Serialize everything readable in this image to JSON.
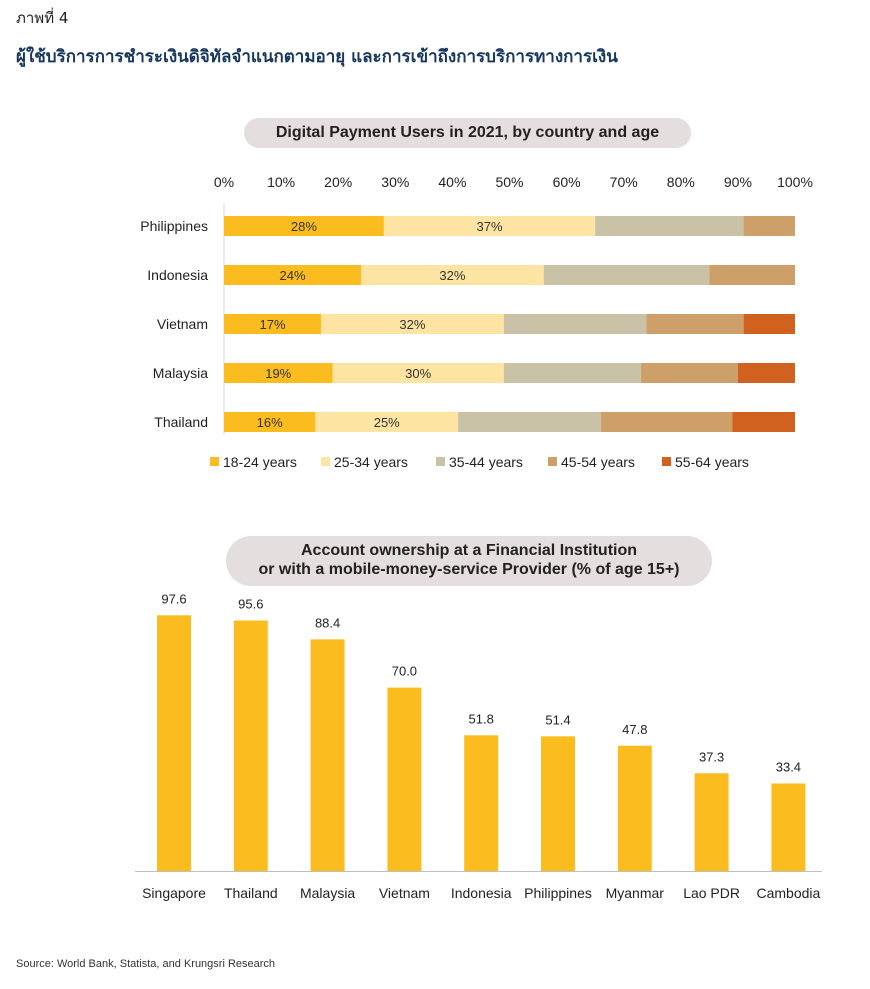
{
  "figure_label": "ภาพที่ 4",
  "figure_title": "ผู้ใช้บริการการชำระเงินดิจิทัลจำแนกตามอายุ และการเข้าถึงการบริการทางการเงิน",
  "source": "Source:  World Bank, Statista, and Krungsri Research",
  "chart_data": [
    {
      "type": "bar",
      "orientation": "horizontal",
      "stacked": true,
      "title": "Digital Payment Users in 2021, by country and age",
      "xlim": [
        0,
        100
      ],
      "x_ticks": [
        "0%",
        "10%",
        "20%",
        "30%",
        "40%",
        "50%",
        "60%",
        "70%",
        "80%",
        "90%",
        "100%"
      ],
      "axis_position": "top",
      "legend_placement": "bottom",
      "categories": [
        "Philippines",
        "Indonesia",
        "Vietnam",
        "Malaysia",
        "Thailand"
      ],
      "series": [
        {
          "name": "18-24 years",
          "color": "#fbbc1f",
          "values": [
            28,
            24,
            17,
            19,
            16
          ],
          "labels": [
            "28%",
            "24%",
            "17%",
            "19%",
            "16%"
          ]
        },
        {
          "name": "25-34 years",
          "color": "#fde4a3",
          "values": [
            37,
            32,
            32,
            30,
            25
          ],
          "labels": [
            "37%",
            "32%",
            "32%",
            "30%",
            "25%"
          ]
        },
        {
          "name": "35-44 years",
          "color": "#c9c2a7",
          "values": [
            26,
            29,
            25,
            24,
            25
          ]
        },
        {
          "name": "45-54 years",
          "color": "#cda06a",
          "values": [
            9,
            15,
            17,
            17,
            23
          ]
        },
        {
          "name": "55-64 years",
          "color": "#d0611e",
          "values": [
            0,
            0,
            9,
            10,
            11
          ]
        }
      ]
    },
    {
      "type": "bar",
      "title_lines": [
        "Account ownership at a Financial Institution",
        "or with a mobile-money-service Provider (% of age 15+)"
      ],
      "categories": [
        "Singapore",
        "Thailand",
        "Malaysia",
        "Vietnam",
        "Indonesia",
        "Philippines",
        "Myanmar",
        "Lao PDR",
        "Cambodia"
      ],
      "values": [
        97.6,
        95.6,
        88.4,
        70.0,
        51.8,
        51.4,
        47.8,
        37.3,
        33.4
      ],
      "value_labels": [
        "97.6",
        "95.6",
        "88.4",
        "70.0",
        "51.8",
        "51.4",
        "47.8",
        "37.3",
        "33.4"
      ],
      "bar_color": "#fbbc1f",
      "ylim": [
        0,
        100
      ],
      "grid": false
    }
  ]
}
